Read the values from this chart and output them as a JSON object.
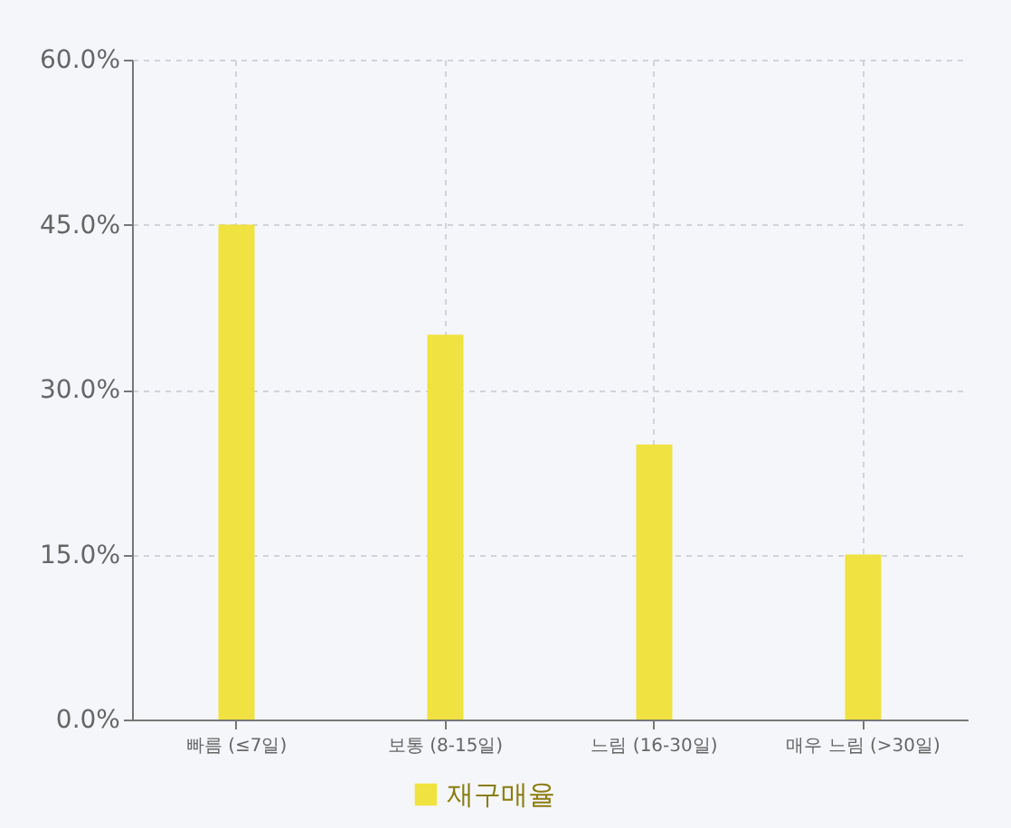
{
  "chart_data": {
    "type": "bar",
    "categories": [
      "빠름 (≤7일)",
      "보통 (8-15일)",
      "느림 (16-30일)",
      "매우 느림 (>30일)"
    ],
    "series": [
      {
        "name": "재구매율",
        "color": "#f0e240",
        "values": [
          45,
          35,
          25,
          15
        ]
      }
    ],
    "ylim": [
      0,
      60
    ],
    "yticks": [
      {
        "value": 0,
        "label": "0.0%"
      },
      {
        "value": 15,
        "label": "15.0%"
      },
      {
        "value": 30,
        "label": "30.0%"
      },
      {
        "value": 45,
        "label": "45.0%"
      },
      {
        "value": 60,
        "label": "60.0%"
      }
    ],
    "grid": true,
    "legend": "bottom"
  }
}
